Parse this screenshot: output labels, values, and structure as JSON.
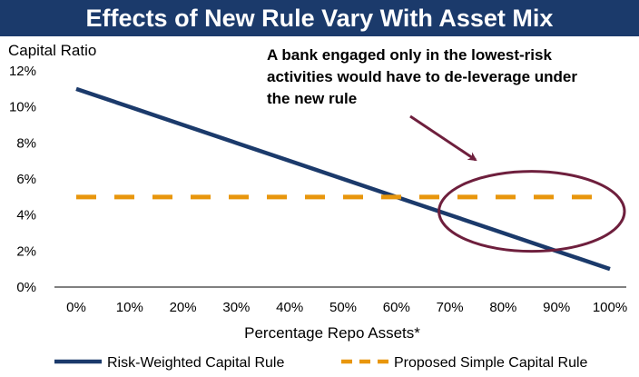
{
  "chart_data": {
    "type": "line",
    "title": "Effects of New Rule Vary With Asset Mix",
    "ylabel": "Capital Ratio",
    "xlabel": "Percentage Repo Assets*",
    "categories": [
      "0%",
      "10%",
      "20%",
      "30%",
      "40%",
      "50%",
      "60%",
      "70%",
      "80%",
      "90%",
      "100%"
    ],
    "x": [
      0,
      10,
      20,
      30,
      40,
      50,
      60,
      70,
      80,
      90,
      100
    ],
    "ylim": [
      0,
      12
    ],
    "yticks": [
      "0%",
      "2%",
      "4%",
      "6%",
      "8%",
      "10%",
      "12%"
    ],
    "series": [
      {
        "name": "Risk-Weighted Capital Rule",
        "color": "#1b3a6b",
        "style": "solid",
        "values": [
          11,
          10,
          9,
          8,
          7,
          6,
          5,
          4,
          3,
          2,
          1
        ]
      },
      {
        "name": "Proposed Simple Capital Rule",
        "color": "#e8960c",
        "style": "dashed",
        "values": [
          5,
          5,
          5,
          5,
          5,
          5,
          5,
          5,
          5,
          5,
          5
        ]
      }
    ],
    "annotation": {
      "lines": [
        "A bank engaged only in the lowest-risk",
        "activities would have to de-leverage under",
        "the new rule"
      ],
      "color": "#6e1f3d",
      "highlight_x_range": [
        70,
        100
      ],
      "highlight_y_center": 4
    },
    "grid": false,
    "legend": "bottom"
  }
}
